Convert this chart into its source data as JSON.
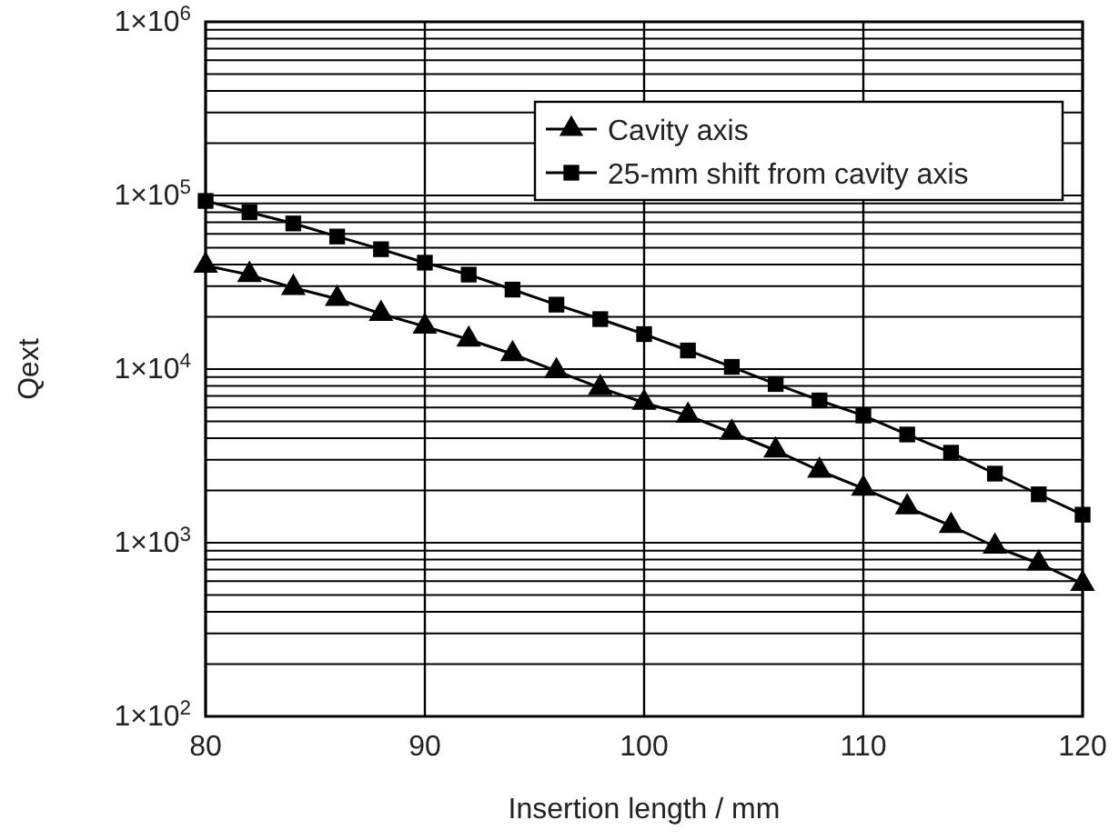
{
  "chart_data": {
    "type": "line",
    "xlabel": "Insertion length / mm",
    "ylabel": "Qext",
    "x": [
      80,
      82,
      84,
      86,
      88,
      90,
      92,
      94,
      96,
      98,
      100,
      102,
      104,
      106,
      108,
      110,
      112,
      114,
      116,
      118,
      120
    ],
    "series": [
      {
        "name": "Cavity axis",
        "color": "#000000",
        "marker": "triangle",
        "values": [
          39500,
          34900,
          29400,
          25400,
          20800,
          17600,
          14800,
          12200,
          9750,
          7800,
          6400,
          5400,
          4300,
          3400,
          2600,
          2050,
          1600,
          1250,
          950,
          760,
          580
        ]
      },
      {
        "name": "25-mm shift from cavity axis",
        "color": "#000000",
        "marker": "square",
        "values": [
          93000,
          80000,
          69000,
          58000,
          49000,
          41000,
          35000,
          28700,
          23500,
          19400,
          15900,
          12800,
          10300,
          8200,
          6600,
          5400,
          4200,
          3300,
          2500,
          1900,
          1450
        ]
      }
    ],
    "log": "y",
    "grid": true,
    "legend": "top right",
    "line_style": "solid",
    "xlim": [
      80,
      120
    ],
    "xticks": [
      80,
      90,
      100,
      110,
      120
    ],
    "ylim": [
      100,
      1000000
    ],
    "yticks": [
      {
        "value": 100,
        "label": "1×10$^{2}$"
      },
      {
        "value": 1000,
        "label": "1×10$^{3}$"
      },
      {
        "value": 10000,
        "label": "1×10$^{4}$"
      },
      {
        "value": 100000,
        "label": "1×10$^{5}$"
      },
      {
        "value": 1000000,
        "label": "1×10$^{6}$"
      }
    ]
  }
}
